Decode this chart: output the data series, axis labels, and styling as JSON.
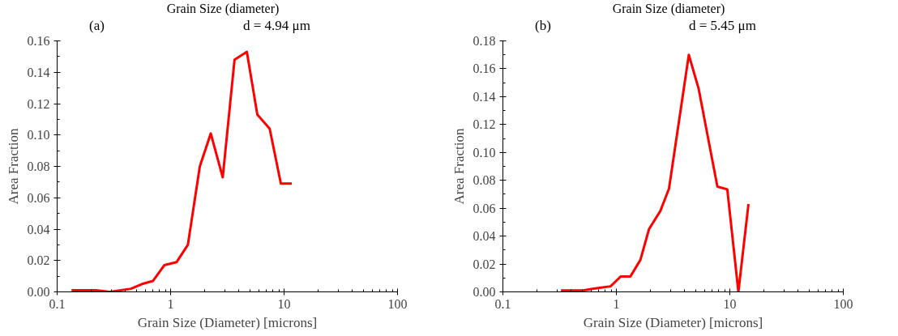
{
  "chart_data": [
    {
      "type": "line",
      "title": "Grain Size (diameter)",
      "xlabel": "Grain Size (Diameter) [microns]",
      "ylabel": "Area Fraction",
      "log": "x",
      "grid": false,
      "marker": "none",
      "line_style": "solid",
      "annotations": [
        "(a)",
        "d = 4.94 μm"
      ],
      "xlim": [
        0.1,
        100
      ],
      "xticks": [
        0.1,
        1,
        10,
        100
      ],
      "ylim": [
        0,
        0.16
      ],
      "yticks": [
        {
          "value": 0,
          "label": "0.00"
        },
        {
          "value": 0.02,
          "label": "0.02"
        },
        {
          "value": 0.04,
          "label": "0.04"
        },
        {
          "value": 0.06,
          "label": "0.06"
        },
        {
          "value": 0.08,
          "label": "0.08"
        },
        {
          "value": 0.1,
          "label": "0.10"
        },
        {
          "value": 0.12,
          "label": "0.12"
        },
        {
          "value": 0.14,
          "label": "0.14"
        },
        {
          "value": 0.16,
          "label": "0.16"
        }
      ],
      "series": [
        {
          "color": "#ff0000",
          "x": [
            0.134,
            0.221,
            0.29,
            0.366,
            0.447,
            0.56,
            0.7,
            0.88,
            1.13,
            1.42,
            1.81,
            2.26,
            2.88,
            3.66,
            4.7,
            5.81,
            7.47,
            9.37,
            11.7
          ],
          "values": [
            0.001,
            0.001,
            0.0,
            0.001,
            0.002,
            0.005,
            0.007,
            0.017,
            0.019,
            0.03,
            0.08,
            0.101,
            0.073,
            0.148,
            0.153,
            0.113,
            0.104,
            0.069,
            0.069
          ]
        }
      ]
    },
    {
      "type": "line",
      "title": "Grain Size (diameter)",
      "xlabel": "Grain Size (Diameter) [microns]",
      "ylabel": "Area Fraction",
      "log": "x",
      "grid": false,
      "marker": "none",
      "line_style": "solid",
      "annotations": [
        "(b)",
        "d = 5.45 μm"
      ],
      "xlim": [
        0.1,
        100
      ],
      "xticks": [
        0.1,
        1,
        10,
        100
      ],
      "ylim": [
        0,
        0.18
      ],
      "yticks": [
        {
          "value": 0,
          "label": "0.00"
        },
        {
          "value": 0.02,
          "label": "0.02"
        },
        {
          "value": 0.04,
          "label": "0.04"
        },
        {
          "value": 0.06,
          "label": "0.06"
        },
        {
          "value": 0.08,
          "label": "0.08"
        },
        {
          "value": 0.1,
          "label": "0.10"
        },
        {
          "value": 0.12,
          "label": "0.12"
        },
        {
          "value": 0.14,
          "label": "0.14"
        },
        {
          "value": 0.16,
          "label": "0.16"
        },
        {
          "value": 0.18,
          "label": "0.18"
        }
      ],
      "series": [
        {
          "color": "#ff0000",
          "x": [
            0.325,
            0.51,
            0.6,
            0.73,
            0.89,
            1.09,
            1.33,
            1.63,
            1.94,
            2.44,
            2.91,
            4.35,
            5.3,
            7.77,
            9.5,
            11.9,
            14.6
          ],
          "values": [
            0.001,
            0.001,
            0.002,
            0.003,
            0.004,
            0.011,
            0.011,
            0.023,
            0.045,
            0.058,
            0.074,
            0.17,
            0.146,
            0.0755,
            0.0735,
            0.0,
            0.063
          ]
        }
      ]
    }
  ]
}
